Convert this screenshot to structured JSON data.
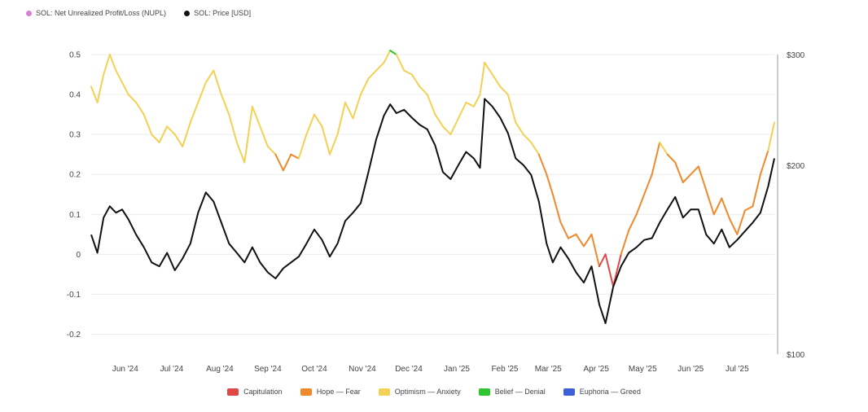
{
  "legend_top": [
    {
      "label": "SOL: Net Unrealized Profit/Loss (NUPL)",
      "color": "#d47fd4"
    },
    {
      "label": "SOL: Price [USD]",
      "color": "#111111"
    }
  ],
  "legend_bottom": [
    {
      "label": "Capitulation",
      "color": "#e04848"
    },
    {
      "label": "Hope — Fear",
      "color": "#ef8a2c"
    },
    {
      "label": "Optimism — Anxiety",
      "color": "#f2d155"
    },
    {
      "label": "Belief — Denial",
      "color": "#2ec52e"
    },
    {
      "label": "Euphoria — Greed",
      "color": "#3f5fd6"
    }
  ],
  "chart_data": {
    "type": "line",
    "x_range": [
      "2024-05-10",
      "2025-07-25"
    ],
    "x_ticks": [
      "Jun '24",
      "Jul '24",
      "Aug '24",
      "Sep '24",
      "Oct '24",
      "Nov '24",
      "Dec '24",
      "Jan '25",
      "Feb '25",
      "Mar '25",
      "Apr '25",
      "May '25",
      "Jun '25",
      "Jul '25"
    ],
    "y_left": {
      "ticks": [
        "0.5",
        "0.4",
        "0.3",
        "0.2",
        "0.1",
        "0",
        "-0.1",
        "-0.2"
      ],
      "range": [
        -0.25,
        0.5
      ]
    },
    "y_right": {
      "ticks": [
        "$300",
        "$200",
        "$100"
      ],
      "range": [
        100,
        300
      ],
      "scale": "log"
    },
    "zone_colors": {
      "capitulation": "#e04848",
      "hope_fear": "#ef8a2c",
      "optimism_anxiety": "#f2d155",
      "belief_denial": "#2ec52e"
    },
    "series": [
      {
        "name": "SOL: Net Unrealized Profit/Loss (NUPL)",
        "axis": "left",
        "x": [
          "2024-05-10",
          "2024-05-14",
          "2024-05-18",
          "2024-05-22",
          "2024-05-26",
          "2024-05-30",
          "2024-06-03",
          "2024-06-08",
          "2024-06-13",
          "2024-06-18",
          "2024-06-23",
          "2024-06-28",
          "2024-07-03",
          "2024-07-08",
          "2024-07-13",
          "2024-07-18",
          "2024-07-23",
          "2024-07-28",
          "2024-08-02",
          "2024-08-07",
          "2024-08-12",
          "2024-08-17",
          "2024-08-22",
          "2024-08-27",
          "2024-09-01",
          "2024-09-06",
          "2024-09-11",
          "2024-09-16",
          "2024-09-21",
          "2024-09-26",
          "2024-10-01",
          "2024-10-06",
          "2024-10-11",
          "2024-10-16",
          "2024-10-21",
          "2024-10-26",
          "2024-10-31",
          "2024-11-05",
          "2024-11-10",
          "2024-11-15",
          "2024-11-19",
          "2024-11-23",
          "2024-11-28",
          "2024-12-03",
          "2024-12-08",
          "2024-12-13",
          "2024-12-18",
          "2024-12-23",
          "2024-12-28",
          "2025-01-02",
          "2025-01-07",
          "2025-01-12",
          "2025-01-16",
          "2025-01-19",
          "2025-01-24",
          "2025-01-29",
          "2025-02-03",
          "2025-02-08",
          "2025-02-13",
          "2025-02-18",
          "2025-02-23",
          "2025-02-28",
          "2025-03-04",
          "2025-03-09",
          "2025-03-14",
          "2025-03-19",
          "2025-03-24",
          "2025-03-29",
          "2025-04-03",
          "2025-04-07",
          "2025-04-12",
          "2025-04-17",
          "2025-04-22",
          "2025-04-27",
          "2025-05-02",
          "2025-05-07",
          "2025-05-12",
          "2025-05-17",
          "2025-05-22",
          "2025-05-27",
          "2025-06-01",
          "2025-06-06",
          "2025-06-11",
          "2025-06-16",
          "2025-06-21",
          "2025-06-26",
          "2025-07-01",
          "2025-07-06",
          "2025-07-11",
          "2025-07-16",
          "2025-07-21",
          "2025-07-25"
        ],
        "values": [
          0.42,
          0.38,
          0.45,
          0.5,
          0.46,
          0.43,
          0.4,
          0.38,
          0.35,
          0.3,
          0.28,
          0.32,
          0.3,
          0.27,
          0.33,
          0.38,
          0.43,
          0.46,
          0.4,
          0.35,
          0.28,
          0.23,
          0.37,
          0.32,
          0.27,
          0.25,
          0.21,
          0.25,
          0.24,
          0.3,
          0.35,
          0.32,
          0.25,
          0.3,
          0.38,
          0.34,
          0.4,
          0.44,
          0.46,
          0.48,
          0.51,
          0.5,
          0.46,
          0.45,
          0.42,
          0.4,
          0.35,
          0.32,
          0.3,
          0.34,
          0.38,
          0.37,
          0.4,
          0.48,
          0.45,
          0.42,
          0.4,
          0.33,
          0.3,
          0.28,
          0.25,
          0.2,
          0.15,
          0.08,
          0.04,
          0.05,
          0.02,
          0.05,
          -0.03,
          0.0,
          -0.08,
          0.0,
          0.06,
          0.1,
          0.15,
          0.2,
          0.28,
          0.25,
          0.23,
          0.18,
          0.2,
          0.22,
          0.16,
          0.1,
          0.14,
          0.09,
          0.05,
          0.11,
          0.12,
          0.2,
          0.26,
          0.33
        ]
      },
      {
        "name": "SOL: Price [USD]",
        "axis": "right",
        "x": [
          "2024-05-10",
          "2024-05-14",
          "2024-05-18",
          "2024-05-22",
          "2024-05-26",
          "2024-05-30",
          "2024-06-03",
          "2024-06-08",
          "2024-06-13",
          "2024-06-18",
          "2024-06-23",
          "2024-06-28",
          "2024-07-03",
          "2024-07-08",
          "2024-07-13",
          "2024-07-18",
          "2024-07-23",
          "2024-07-28",
          "2024-08-02",
          "2024-08-07",
          "2024-08-12",
          "2024-08-17",
          "2024-08-22",
          "2024-08-27",
          "2024-09-01",
          "2024-09-06",
          "2024-09-11",
          "2024-09-16",
          "2024-09-21",
          "2024-09-26",
          "2024-10-01",
          "2024-10-06",
          "2024-10-11",
          "2024-10-16",
          "2024-10-21",
          "2024-10-26",
          "2024-10-31",
          "2024-11-05",
          "2024-11-10",
          "2024-11-15",
          "2024-11-19",
          "2024-11-23",
          "2024-11-28",
          "2024-12-03",
          "2024-12-08",
          "2024-12-13",
          "2024-12-18",
          "2024-12-23",
          "2024-12-28",
          "2025-01-02",
          "2025-01-07",
          "2025-01-12",
          "2025-01-16",
          "2025-01-19",
          "2025-01-24",
          "2025-01-29",
          "2025-02-03",
          "2025-02-08",
          "2025-02-13",
          "2025-02-18",
          "2025-02-23",
          "2025-02-28",
          "2025-03-04",
          "2025-03-09",
          "2025-03-14",
          "2025-03-19",
          "2025-03-24",
          "2025-03-29",
          "2025-04-03",
          "2025-04-07",
          "2025-04-12",
          "2025-04-17",
          "2025-04-22",
          "2025-04-27",
          "2025-05-02",
          "2025-05-07",
          "2025-05-12",
          "2025-05-17",
          "2025-05-22",
          "2025-05-27",
          "2025-06-01",
          "2025-06-06",
          "2025-06-11",
          "2025-06-16",
          "2025-06-21",
          "2025-06-26",
          "2025-07-01",
          "2025-07-06",
          "2025-07-11",
          "2025-07-16",
          "2025-07-21",
          "2025-07-25"
        ],
        "values": [
          155,
          145,
          165,
          172,
          168,
          170,
          164,
          155,
          148,
          140,
          138,
          145,
          136,
          142,
          150,
          168,
          181,
          175,
          162,
          150,
          145,
          140,
          148,
          140,
          135,
          132,
          137,
          140,
          143,
          150,
          158,
          152,
          143,
          150,
          163,
          168,
          174,
          195,
          220,
          240,
          250,
          242,
          245,
          238,
          232,
          228,
          215,
          195,
          190,
          200,
          210,
          205,
          198,
          255,
          248,
          238,
          225,
          205,
          200,
          193,
          175,
          150,
          140,
          148,
          142,
          135,
          130,
          138,
          120,
          112,
          128,
          138,
          145,
          148,
          152,
          153,
          162,
          170,
          178,
          165,
          170,
          170,
          155,
          150,
          158,
          148,
          152,
          157,
          162,
          168,
          185,
          205
        ]
      }
    ]
  }
}
